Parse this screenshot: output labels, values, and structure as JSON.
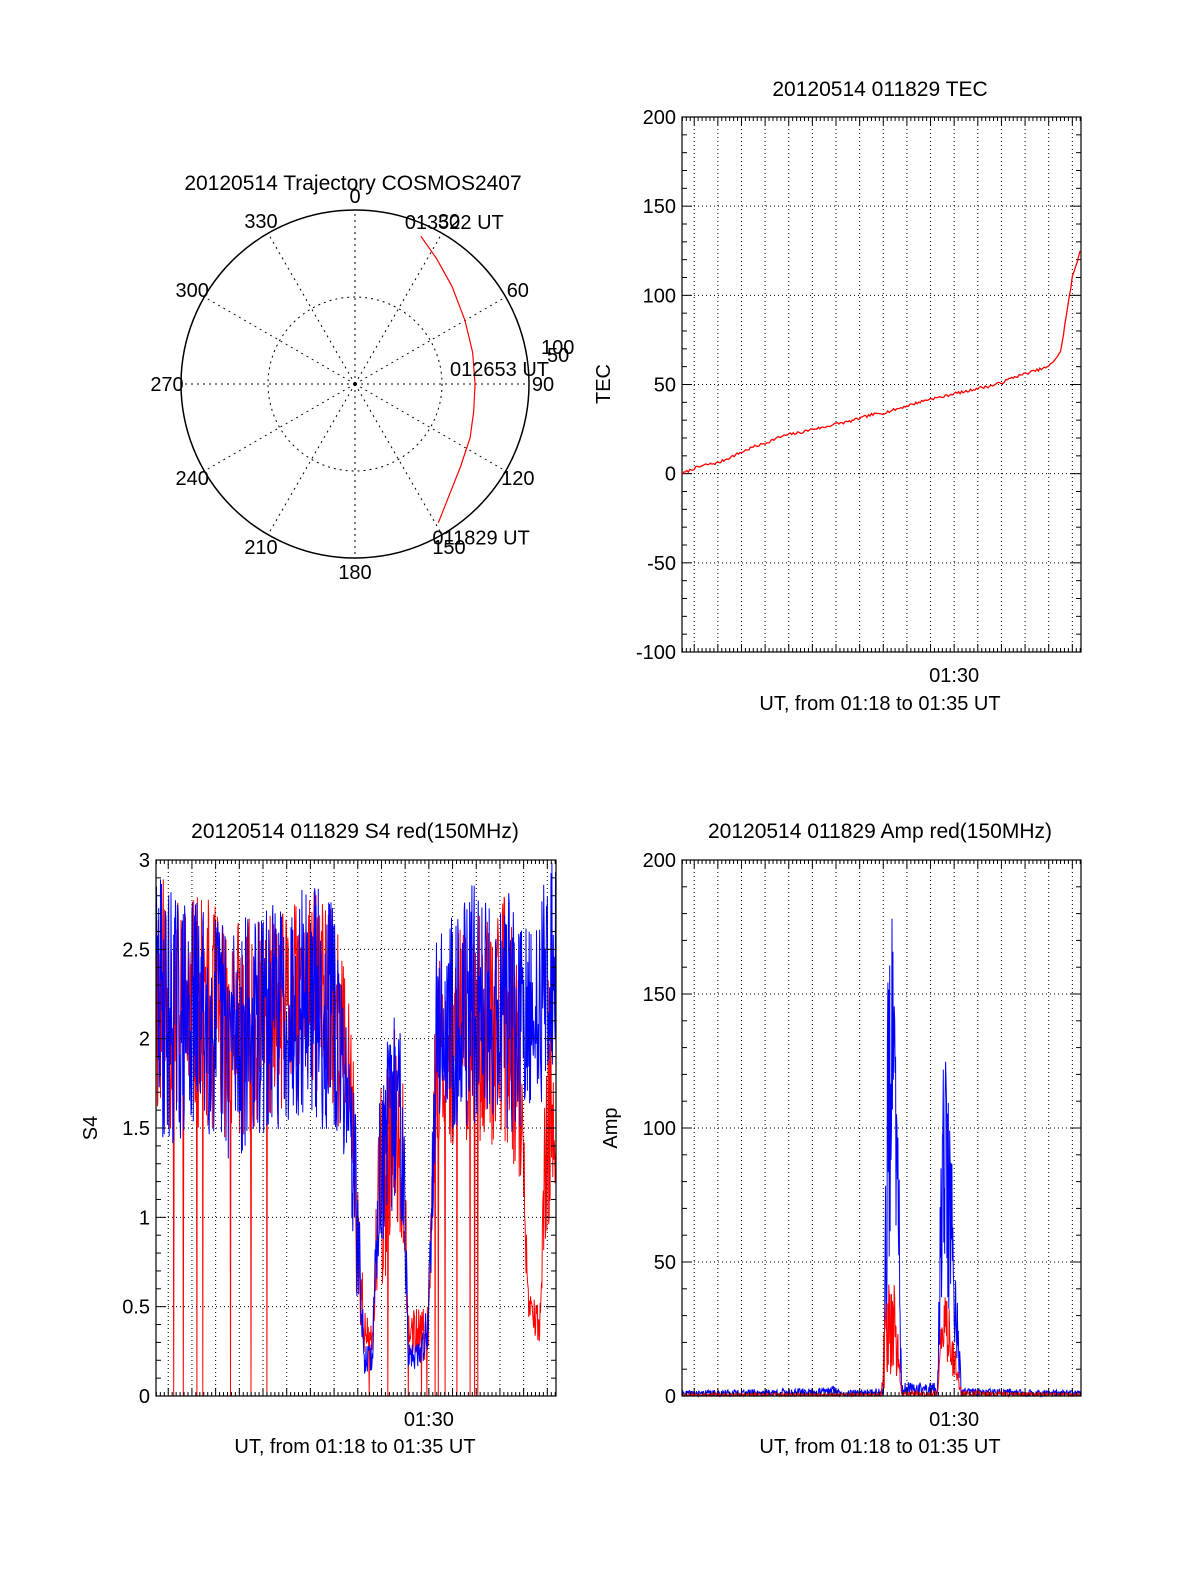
{
  "colors": {
    "red": "#ff0000",
    "blue": "#0000ff",
    "axis": "#000000"
  },
  "chart_data": [
    {
      "id": "polar",
      "type": "scatter",
      "title": "20120514 Trajectory COSMOS2407",
      "azimuth_labels": [
        "0",
        "30",
        "60",
        "90",
        "120",
        "150",
        "180",
        "210",
        "240",
        "270",
        "300",
        "330"
      ],
      "radius_labels": [
        "50",
        "100"
      ],
      "rlim": [
        0,
        100
      ],
      "series": [
        {
          "color": "#ff0000",
          "points": [
            {
              "az": 149,
              "r": 93
            },
            {
              "az": 140,
              "r": 84
            },
            {
              "az": 128,
              "r": 77
            },
            {
              "az": 115,
              "r": 73
            },
            {
              "az": 103,
              "r": 70
            },
            {
              "az": 90,
              "r": 69
            },
            {
              "az": 75,
              "r": 70
            },
            {
              "az": 60,
              "r": 73
            },
            {
              "az": 45,
              "r": 79
            },
            {
              "az": 33,
              "r": 86
            },
            {
              "az": 24,
              "r": 93
            }
          ]
        }
      ],
      "annotations": [
        {
          "text": "013522 UT",
          "az": 24,
          "r": 93
        },
        {
          "text": "012653 UT",
          "az": 90,
          "r": 69
        },
        {
          "text": "011829 UT",
          "az": 149,
          "r": 93
        }
      ]
    },
    {
      "id": "tec",
      "type": "line",
      "title": "20120514 011829 TEC",
      "ylabel": "TEC",
      "xlabel": "UT, from 01:18 to 01:35 UT",
      "xlim": [
        "01:18:29",
        "01:35:22"
      ],
      "ylim": [
        -100,
        200
      ],
      "yticks": [
        "-100",
        "-50",
        "0",
        "50",
        "100",
        "150",
        "200"
      ],
      "xtick": {
        "label": "01:30",
        "value": "01:30:00"
      },
      "grid": true,
      "series": [
        {
          "color": "#ff0000",
          "x": [
            "01:18:30",
            "01:19:00",
            "01:19:30",
            "01:20:00",
            "01:20:30",
            "01:21:00",
            "01:21:30",
            "01:22:00",
            "01:22:30",
            "01:23:00",
            "01:23:30",
            "01:24:00",
            "01:24:30",
            "01:25:00",
            "01:25:30",
            "01:26:00",
            "01:26:30",
            "01:27:00",
            "01:27:30",
            "01:28:00",
            "01:28:30",
            "01:29:00",
            "01:29:30",
            "01:30:00",
            "01:30:30",
            "01:31:00",
            "01:31:30",
            "01:32:00",
            "01:32:30",
            "01:33:00",
            "01:33:30",
            "01:34:00",
            "01:34:30",
            "01:35:00",
            "01:35:20"
          ],
          "y": [
            0,
            3,
            5,
            6,
            9,
            12,
            15,
            17,
            20,
            22,
            23,
            25,
            26,
            28,
            29,
            31,
            33,
            34,
            36,
            38,
            40,
            42,
            43,
            45,
            46,
            48,
            49,
            51,
            54,
            56,
            58,
            60,
            68,
            110,
            125
          ]
        }
      ]
    },
    {
      "id": "s4",
      "type": "line",
      "title": "20120514 011829 S4 red(150MHz)",
      "ylabel": "S4",
      "xlabel": "UT, from 01:18 to 01:35 UT",
      "xlim": [
        "01:18:29",
        "01:35:22"
      ],
      "ylim": [
        0,
        3
      ],
      "yticks": [
        "0",
        "0.5",
        "1",
        "1.5",
        "2",
        "2.5",
        "3"
      ],
      "xtick": {
        "label": "01:30",
        "value": "01:30:00"
      },
      "grid": true,
      "series": [
        {
          "color": "#ff0000",
          "envelope": [
            [
              0.0,
              1.5,
              3.0
            ],
            [
              0.06,
              1.4,
              2.8
            ],
            [
              0.12,
              1.5,
              2.8
            ],
            [
              0.18,
              1.4,
              2.7
            ],
            [
              0.25,
              1.5,
              2.7
            ],
            [
              0.31,
              1.5,
              2.7
            ],
            [
              0.38,
              1.7,
              2.8
            ],
            [
              0.44,
              1.6,
              2.9
            ],
            [
              0.49,
              1.3,
              2.1
            ],
            [
              0.5,
              0.6,
              1.5
            ],
            [
              0.52,
              0.2,
              0.5
            ],
            [
              0.54,
              0.2,
              0.4
            ],
            [
              0.56,
              0.6,
              1.7
            ],
            [
              0.58,
              0.6,
              1.9
            ],
            [
              0.6,
              0.9,
              2.1
            ],
            [
              0.62,
              0.8,
              1.9
            ],
            [
              0.63,
              0.25,
              0.5
            ],
            [
              0.66,
              0.2,
              0.5
            ],
            [
              0.68,
              0.2,
              0.5
            ],
            [
              0.7,
              1.4,
              2.5
            ],
            [
              0.8,
              1.4,
              2.7
            ],
            [
              0.87,
              1.4,
              2.8
            ],
            [
              0.91,
              1.2,
              2.5
            ],
            [
              0.93,
              0.35,
              0.6
            ],
            [
              0.96,
              0.3,
              0.5
            ],
            [
              0.98,
              0.9,
              2.5
            ],
            [
              1.0,
              1.2,
              1.6
            ]
          ]
        },
        {
          "color": "#0000ff",
          "envelope": [
            [
              0.0,
              1.4,
              3.0
            ],
            [
              0.06,
              1.4,
              2.8
            ],
            [
              0.12,
              1.5,
              2.8
            ],
            [
              0.18,
              1.3,
              2.7
            ],
            [
              0.25,
              1.4,
              2.7
            ],
            [
              0.31,
              1.5,
              2.8
            ],
            [
              0.38,
              1.6,
              2.9
            ],
            [
              0.44,
              1.4,
              2.8
            ],
            [
              0.48,
              1.3,
              2.1
            ],
            [
              0.5,
              0.6,
              1.6
            ],
            [
              0.52,
              0.12,
              0.3
            ],
            [
              0.54,
              0.12,
              0.3
            ],
            [
              0.56,
              0.8,
              1.8
            ],
            [
              0.58,
              0.8,
              2.0
            ],
            [
              0.6,
              1.1,
              2.3
            ],
            [
              0.62,
              0.9,
              2.0
            ],
            [
              0.63,
              0.15,
              0.3
            ],
            [
              0.66,
              0.15,
              0.3
            ],
            [
              0.68,
              0.2,
              0.6
            ],
            [
              0.7,
              1.5,
              2.6
            ],
            [
              0.8,
              1.5,
              2.9
            ],
            [
              0.87,
              1.5,
              2.9
            ],
            [
              0.91,
              1.4,
              2.7
            ],
            [
              0.93,
              1.4,
              2.6
            ],
            [
              0.96,
              1.6,
              2.8
            ],
            [
              0.98,
              1.8,
              3.0
            ],
            [
              1.0,
              1.8,
              3.0
            ]
          ]
        }
      ]
    },
    {
      "id": "amp",
      "type": "line",
      "title": "20120514 011829 Amp red(150MHz)",
      "ylabel": "Amp",
      "xlabel": "UT, from 01:18 to 01:35 UT",
      "xlim": [
        "01:18:29",
        "01:35:22"
      ],
      "ylim": [
        0,
        200
      ],
      "yticks": [
        "0",
        "50",
        "100",
        "150",
        "200"
      ],
      "xtick": {
        "label": "01:30",
        "value": "01:30:00"
      },
      "grid": true,
      "series": [
        {
          "color": "#ff0000",
          "envelope": [
            [
              0.0,
              0,
              1
            ],
            [
              0.5,
              0,
              1
            ],
            [
              0.515,
              5,
              60
            ],
            [
              0.53,
              10,
              50
            ],
            [
              0.55,
              0,
              2
            ],
            [
              0.64,
              0,
              2
            ],
            [
              0.655,
              15,
              40
            ],
            [
              0.67,
              10,
              35
            ],
            [
              0.7,
              0,
              2
            ],
            [
              1.0,
              0,
              1
            ]
          ]
        },
        {
          "color": "#0000ff",
          "envelope": [
            [
              0.0,
              0,
              2
            ],
            [
              0.35,
              0,
              3
            ],
            [
              0.38,
              0,
              4
            ],
            [
              0.4,
              0,
              2
            ],
            [
              0.505,
              0,
              3
            ],
            [
              0.515,
              30,
              170
            ],
            [
              0.525,
              50,
              185
            ],
            [
              0.54,
              30,
              150
            ],
            [
              0.55,
              0,
              5
            ],
            [
              0.64,
              0,
              5
            ],
            [
              0.655,
              40,
              150
            ],
            [
              0.67,
              30,
              110
            ],
            [
              0.7,
              0,
              3
            ],
            [
              1.0,
              0,
              2
            ]
          ]
        }
      ]
    }
  ]
}
